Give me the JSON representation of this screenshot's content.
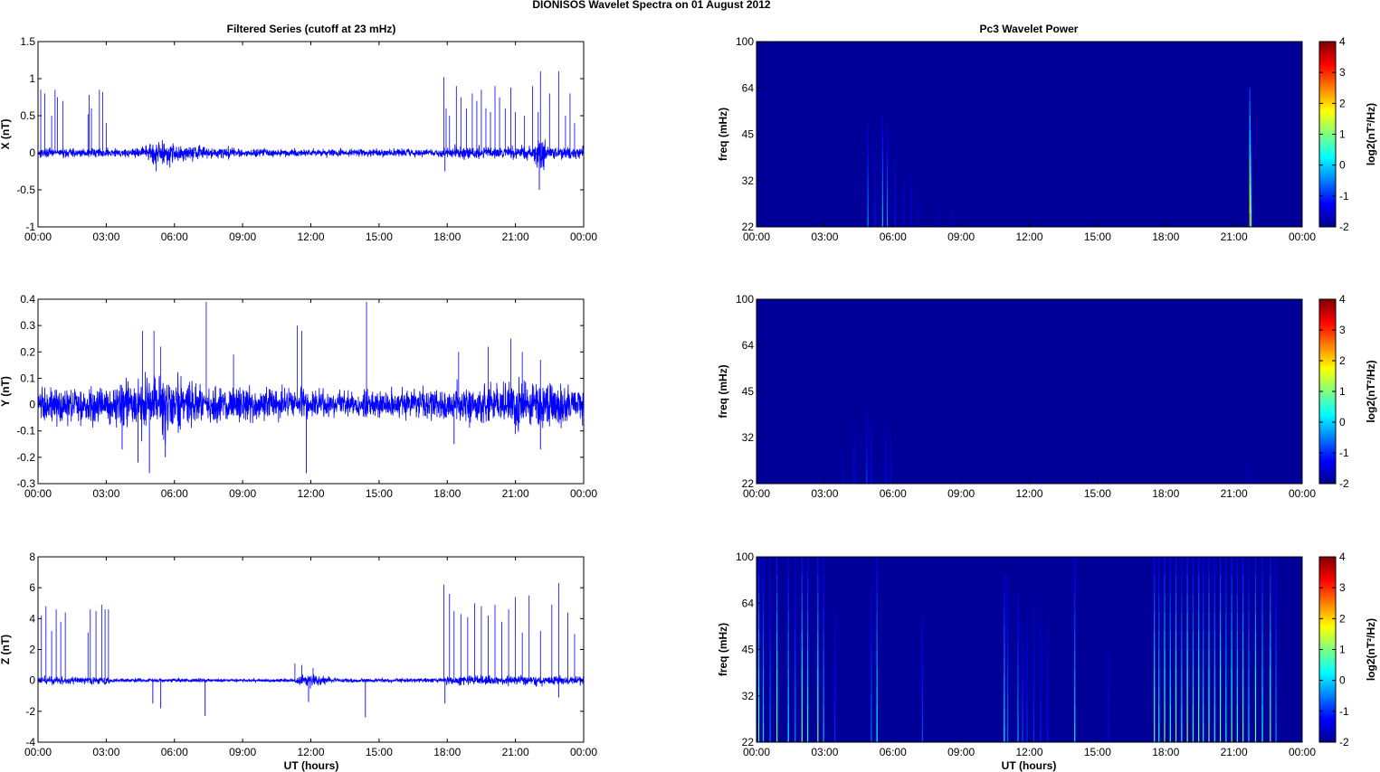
{
  "figure": {
    "title": "DIONISOS Wavelet Spectra on 01 August    2012",
    "left_title": "Filtered Series (cutoff at 23 mHz)",
    "right_title": "Pc3 Wavelet Power",
    "xlabel": "UT (hours)"
  },
  "chart_data": [
    {
      "type": "line",
      "name": "series-x",
      "ylabel": "X (nT)",
      "x_ticks": [
        "00:00",
        "03:00",
        "06:00",
        "09:00",
        "12:00",
        "15:00",
        "18:00",
        "21:00",
        "00:00"
      ],
      "xlim_hours": [
        0,
        24
      ],
      "ylim": [
        -1,
        1.5
      ],
      "y_ticks": [
        -1,
        -0.5,
        0,
        0.5,
        1,
        1.5
      ],
      "color": "#0000ff",
      "noise": [
        [
          0,
          0.06
        ],
        [
          4.5,
          0.06
        ],
        [
          4.8,
          0.12
        ],
        [
          5.5,
          0.16
        ],
        [
          6.5,
          0.12
        ],
        [
          7.5,
          0.08
        ],
        [
          9,
          0.06
        ],
        [
          12,
          0.05
        ],
        [
          15,
          0.05
        ],
        [
          17.5,
          0.05
        ],
        [
          18,
          0.08
        ],
        [
          21,
          0.08
        ],
        [
          21.8,
          0.1
        ],
        [
          22.1,
          0.3
        ],
        [
          22.4,
          0.1
        ],
        [
          24,
          0.08
        ]
      ],
      "spikes": [
        [
          0.12,
          0.85
        ],
        [
          0.3,
          0.8
        ],
        [
          0.6,
          0.5
        ],
        [
          0.75,
          0.85
        ],
        [
          0.85,
          0.75
        ],
        [
          1.1,
          0.7
        ],
        [
          2.2,
          0.52
        ],
        [
          2.25,
          0.78
        ],
        [
          2.35,
          0.6
        ],
        [
          2.7,
          0.85
        ],
        [
          2.85,
          0.82
        ],
        [
          3.0,
          0.4
        ],
        [
          17.85,
          1.02
        ],
        [
          17.95,
          0.6
        ],
        [
          18.1,
          0.5
        ],
        [
          18.4,
          0.9
        ],
        [
          18.6,
          0.75
        ],
        [
          18.85,
          0.6
        ],
        [
          19.1,
          0.8
        ],
        [
          19.3,
          0.7
        ],
        [
          19.5,
          0.85
        ],
        [
          19.7,
          0.6
        ],
        [
          19.9,
          0.55
        ],
        [
          20.1,
          0.9
        ],
        [
          20.3,
          0.75
        ],
        [
          20.55,
          0.6
        ],
        [
          20.8,
          0.88
        ],
        [
          21.0,
          0.55
        ],
        [
          21.4,
          0.5
        ],
        [
          21.75,
          0.9
        ],
        [
          22.0,
          0.55
        ],
        [
          22.1,
          1.1
        ],
        [
          22.5,
          0.8
        ],
        [
          22.9,
          1.1
        ],
        [
          23.2,
          0.5
        ],
        [
          23.4,
          0.8
        ],
        [
          23.6,
          0.4
        ]
      ],
      "neg_spikes": [
        [
          5.2,
          -0.25
        ],
        [
          17.9,
          -0.25
        ],
        [
          22.05,
          -0.5
        ],
        [
          5.8,
          -0.2
        ]
      ]
    },
    {
      "type": "line",
      "name": "series-y",
      "ylabel": "Y (nT)",
      "x_ticks": [
        "00:00",
        "03:00",
        "06:00",
        "09:00",
        "12:00",
        "15:00",
        "18:00",
        "21:00",
        "00:00"
      ],
      "xlim_hours": [
        0,
        24
      ],
      "ylim": [
        -0.3,
        0.4
      ],
      "y_ticks": [
        -0.3,
        -0.2,
        -0.1,
        0,
        0.1,
        0.2,
        0.3,
        0.4
      ],
      "color": "#0000ff",
      "noise": [
        [
          0,
          0.07
        ],
        [
          3,
          0.07
        ],
        [
          4.5,
          0.1
        ],
        [
          5.5,
          0.13
        ],
        [
          6.5,
          0.09
        ],
        [
          8,
          0.07
        ],
        [
          10,
          0.06
        ],
        [
          12,
          0.05
        ],
        [
          15,
          0.05
        ],
        [
          17.5,
          0.06
        ],
        [
          19,
          0.07
        ],
        [
          21,
          0.09
        ],
        [
          22,
          0.08
        ],
        [
          24,
          0.07
        ]
      ],
      "spikes": [
        [
          4.6,
          0.28
        ],
        [
          5.1,
          0.28
        ],
        [
          5.4,
          0.22
        ],
        [
          7.4,
          0.39
        ],
        [
          8.6,
          0.19
        ],
        [
          11.4,
          0.3
        ],
        [
          11.6,
          0.28
        ],
        [
          14.45,
          0.39
        ],
        [
          18.5,
          0.2
        ],
        [
          19.8,
          0.22
        ],
        [
          20.8,
          0.25
        ],
        [
          21.3,
          0.2
        ],
        [
          22.1,
          0.17
        ]
      ],
      "neg_spikes": [
        [
          3.7,
          -0.17
        ],
        [
          4.4,
          -0.22
        ],
        [
          4.9,
          -0.26
        ],
        [
          5.6,
          -0.2
        ],
        [
          11.8,
          -0.26
        ],
        [
          18.3,
          -0.15
        ],
        [
          22.1,
          -0.17
        ]
      ]
    },
    {
      "type": "line",
      "name": "series-z",
      "ylabel": "Z (nT)",
      "x_ticks": [
        "00:00",
        "03:00",
        "06:00",
        "09:00",
        "12:00",
        "15:00",
        "18:00",
        "21:00",
        "00:00"
      ],
      "xlim_hours": [
        0,
        24
      ],
      "ylim": [
        -4,
        8
      ],
      "y_ticks": [
        -4,
        -2,
        0,
        2,
        4,
        6,
        8
      ],
      "color": "#0000ff",
      "noise": [
        [
          0,
          0.25
        ],
        [
          3,
          0.25
        ],
        [
          3.3,
          0.12
        ],
        [
          11.3,
          0.12
        ],
        [
          11.5,
          0.4
        ],
        [
          12.5,
          0.3
        ],
        [
          13,
          0.12
        ],
        [
          17.8,
          0.15
        ],
        [
          18,
          0.3
        ],
        [
          24,
          0.3
        ]
      ],
      "spikes": [
        [
          0.15,
          4.2
        ],
        [
          0.35,
          4.8
        ],
        [
          0.6,
          3.2
        ],
        [
          0.8,
          4.6
        ],
        [
          1.0,
          3.8
        ],
        [
          1.2,
          4.4
        ],
        [
          2.2,
          3.1
        ],
        [
          2.3,
          4.6
        ],
        [
          2.55,
          4.5
        ],
        [
          2.8,
          4.9
        ],
        [
          2.95,
          4.6
        ],
        [
          3.1,
          4.6
        ],
        [
          11.3,
          1.1
        ],
        [
          11.6,
          1.0
        ],
        [
          12.1,
          0.8
        ],
        [
          17.85,
          6.2
        ],
        [
          18.1,
          5.6
        ],
        [
          18.3,
          4.5
        ],
        [
          18.6,
          4.3
        ],
        [
          18.9,
          4.1
        ],
        [
          19.2,
          5.0
        ],
        [
          19.5,
          4.8
        ],
        [
          19.8,
          4.2
        ],
        [
          20.1,
          4.9
        ],
        [
          20.4,
          3.8
        ],
        [
          20.7,
          4.6
        ],
        [
          21.0,
          5.4
        ],
        [
          21.3,
          3.1
        ],
        [
          21.6,
          5.5
        ],
        [
          22.1,
          3.2
        ],
        [
          22.6,
          4.9
        ],
        [
          22.9,
          6.3
        ],
        [
          23.3,
          4.4
        ],
        [
          23.6,
          3.0
        ]
      ],
      "neg_spikes": [
        [
          5.05,
          -1.5
        ],
        [
          5.4,
          -1.8
        ],
        [
          7.35,
          -2.3
        ],
        [
          11.9,
          -1.4
        ],
        [
          14.4,
          -2.4
        ],
        [
          17.9,
          -1.5
        ],
        [
          22.9,
          -1.1
        ]
      ]
    },
    {
      "type": "heatmap",
      "name": "spectrum-x",
      "ylabel": "freq (mHz)",
      "colorbar_label": "log2(nT²/Hz)",
      "x_ticks": [
        "00:00",
        "03:00",
        "06:00",
        "09:00",
        "12:00",
        "15:00",
        "18:00",
        "21:00",
        "00:00"
      ],
      "xlim_hours": [
        0,
        24
      ],
      "y_ticks": [
        "22",
        "32",
        "45",
        "64",
        "100"
      ],
      "clim": [
        -2,
        4
      ],
      "colorbar_ticks": [
        -2,
        -1,
        0,
        1,
        2,
        3,
        4
      ],
      "background_level": -1.85,
      "streaks": [
        [
          4.9,
          -0.4,
          0.55,
          0.03
        ],
        [
          5.2,
          -1.2,
          0.4,
          0.03
        ],
        [
          5.55,
          -0.2,
          0.6,
          0.04
        ],
        [
          5.75,
          -0.4,
          0.55,
          0.03
        ],
        [
          6.1,
          -1.2,
          0.45,
          0.03
        ],
        [
          6.5,
          -1.4,
          0.35,
          0.03
        ],
        [
          6.8,
          -1.4,
          0.35,
          0.03
        ],
        [
          7.1,
          -1.5,
          0.3,
          0.03
        ],
        [
          8.0,
          -1.6,
          0.25,
          0.03
        ],
        [
          8.6,
          -1.6,
          0.25,
          0.03
        ],
        [
          21.7,
          2.2,
          0.75,
          0.05
        ],
        [
          21.75,
          0.5,
          0.55,
          0.04
        ]
      ]
    },
    {
      "type": "heatmap",
      "name": "spectrum-y",
      "ylabel": "freq (mHz)",
      "colorbar_label": "log2(nT²/Hz)",
      "x_ticks": [
        "00:00",
        "03:00",
        "06:00",
        "09:00",
        "12:00",
        "15:00",
        "18:00",
        "21:00",
        "00:00"
      ],
      "xlim_hours": [
        0,
        24
      ],
      "y_ticks": [
        "22",
        "32",
        "45",
        "64",
        "100"
      ],
      "clim": [
        -2,
        4
      ],
      "colorbar_ticks": [
        -2,
        -1,
        0,
        1,
        2,
        3,
        4
      ],
      "background_level": -1.85,
      "streaks": [
        [
          3.8,
          -1.5,
          0.2,
          0.03
        ],
        [
          4.3,
          -1.2,
          0.35,
          0.03
        ],
        [
          4.85,
          -0.9,
          0.4,
          0.03
        ],
        [
          5.05,
          -1.2,
          0.35,
          0.03
        ],
        [
          5.7,
          -1.3,
          0.35,
          0.03
        ],
        [
          5.9,
          -1.4,
          0.3,
          0.03
        ],
        [
          21.6,
          -1.5,
          0.15,
          0.03
        ]
      ]
    },
    {
      "type": "heatmap",
      "name": "spectrum-z",
      "ylabel": "freq (mHz)",
      "colorbar_label": "log2(nT²/Hz)",
      "x_ticks": [
        "00:00",
        "03:00",
        "06:00",
        "09:00",
        "12:00",
        "15:00",
        "18:00",
        "21:00",
        "00:00"
      ],
      "xlim_hours": [
        0,
        24
      ],
      "y_ticks": [
        "22",
        "32",
        "45",
        "64",
        "100"
      ],
      "clim": [
        -2,
        4
      ],
      "colorbar_ticks": [
        -2,
        -1,
        0,
        1,
        2,
        3,
        4
      ],
      "background_level": -1.85,
      "streaks": [
        [
          0.1,
          0.8,
          1.0,
          0.03
        ],
        [
          0.3,
          0.0,
          1.0,
          0.03
        ],
        [
          0.6,
          -0.6,
          1.0,
          0.03
        ],
        [
          0.9,
          0.9,
          1.0,
          0.03
        ],
        [
          1.4,
          0.2,
          1.0,
          0.03
        ],
        [
          1.7,
          -0.5,
          1.0,
          0.03
        ],
        [
          2.0,
          1.0,
          1.0,
          0.03
        ],
        [
          2.25,
          0.4,
          1.0,
          0.03
        ],
        [
          2.7,
          0.9,
          1.0,
          0.03
        ],
        [
          2.95,
          -0.2,
          1.0,
          0.03
        ],
        [
          3.45,
          -1.0,
          0.75,
          0.03
        ],
        [
          5.05,
          -0.6,
          0.85,
          0.03
        ],
        [
          5.3,
          0.3,
          1.0,
          0.03
        ],
        [
          7.3,
          -0.8,
          0.7,
          0.03
        ],
        [
          10.9,
          0.2,
          0.9,
          0.03
        ],
        [
          11.05,
          -0.6,
          0.9,
          0.03
        ],
        [
          11.5,
          -0.3,
          0.8,
          0.03
        ],
        [
          11.7,
          -0.8,
          0.65,
          0.03
        ],
        [
          11.9,
          -1.0,
          0.7,
          0.03
        ],
        [
          12.2,
          -1.0,
          0.8,
          0.03
        ],
        [
          12.5,
          -1.1,
          0.75,
          0.03
        ],
        [
          12.8,
          -1.2,
          0.7,
          0.03
        ],
        [
          14.0,
          0.1,
          1.0,
          0.03
        ],
        [
          15.5,
          -1.3,
          0.6,
          0.03
        ],
        [
          17.5,
          0.7,
          1.0,
          0.03
        ],
        [
          17.7,
          0.2,
          1.0,
          0.03
        ],
        [
          17.95,
          1.0,
          1.0,
          0.03
        ],
        [
          18.2,
          0.4,
          1.0,
          0.03
        ],
        [
          18.45,
          0.9,
          1.0,
          0.03
        ],
        [
          18.7,
          0.2,
          1.0,
          0.03
        ],
        [
          18.95,
          1.1,
          1.0,
          0.03
        ],
        [
          19.2,
          0.4,
          1.0,
          0.03
        ],
        [
          19.45,
          0.9,
          1.0,
          0.03
        ],
        [
          19.65,
          0.2,
          1.0,
          0.03
        ],
        [
          19.9,
          0.8,
          1.0,
          0.03
        ],
        [
          20.15,
          0.3,
          1.0,
          0.03
        ],
        [
          20.4,
          1.0,
          1.0,
          0.03
        ],
        [
          20.65,
          0.2,
          1.0,
          0.03
        ],
        [
          20.9,
          0.9,
          1.0,
          0.03
        ],
        [
          21.15,
          0.3,
          1.0,
          0.03
        ],
        [
          21.4,
          0.8,
          1.0,
          0.03
        ],
        [
          21.65,
          0.0,
          1.0,
          0.03
        ],
        [
          21.95,
          0.9,
          1.0,
          0.03
        ],
        [
          22.25,
          0.4,
          1.0,
          0.03
        ],
        [
          22.6,
          0.9,
          1.0,
          0.03
        ],
        [
          22.85,
          -0.4,
          1.0,
          0.03
        ]
      ]
    }
  ]
}
